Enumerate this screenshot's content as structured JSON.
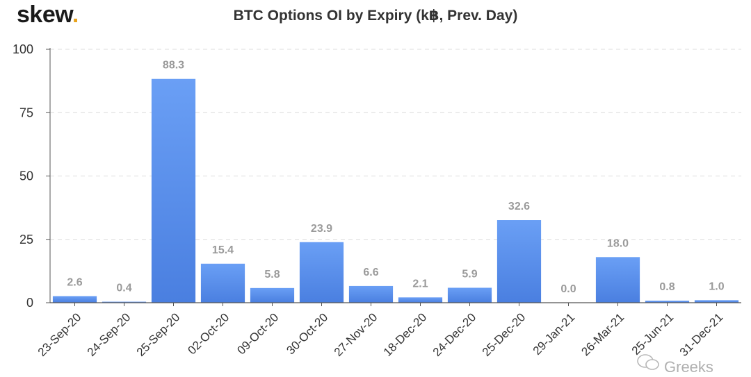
{
  "brand": {
    "name": "skew",
    "dot": "."
  },
  "watermark": "Greeks",
  "colors": {
    "bar_top": "#6a9ff5",
    "bar_bottom": "#4a7fe0",
    "grid": "#e3e3e3",
    "axis": "#555555",
    "label": "#9a9a9a",
    "brand_dot": "#e8a21a"
  },
  "chart_data": {
    "type": "bar",
    "title": "BTC Options OI by Expiry (k฿, Prev. Day)",
    "xlabel": "",
    "ylabel": "",
    "categories": [
      "23-Sep-20",
      "24-Sep-20",
      "25-Sep-20",
      "02-Oct-20",
      "09-Oct-20",
      "30-Oct-20",
      "27-Nov-20",
      "18-Dec-20",
      "24-Dec-20",
      "25-Dec-20",
      "29-Jan-21",
      "26-Mar-21",
      "25-Jun-21",
      "31-Dec-21"
    ],
    "values": [
      2.6,
      0.4,
      88.3,
      15.4,
      5.8,
      23.9,
      6.6,
      2.1,
      5.9,
      32.6,
      0.0,
      18.0,
      0.8,
      1.0
    ],
    "data_labels": [
      "2.6",
      "0.4",
      "88.3",
      "15.4",
      "5.8",
      "23.9",
      "6.6",
      "2.1",
      "5.9",
      "32.6",
      "0.0",
      "18.0",
      "0.8",
      "1.0"
    ],
    "yticks": [
      0,
      25,
      50,
      75,
      100
    ],
    "ylim": [
      0,
      100
    ],
    "grid": true,
    "legend": "none"
  }
}
